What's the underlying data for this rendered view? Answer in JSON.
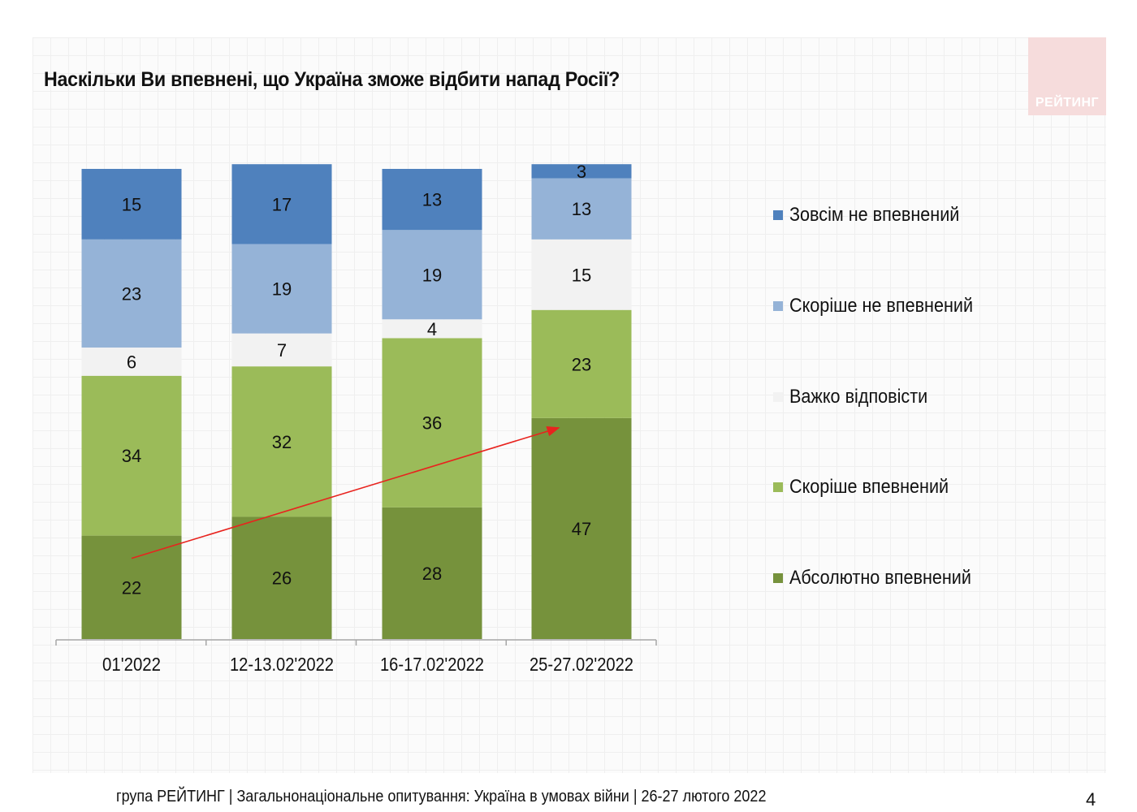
{
  "title": "Наскільки Ви впевнені, що Україна зможе відбити напад Росії?",
  "logo": "РЕЙТИНГ",
  "footer": "група РЕЙТИНГ | Загальнонаціональне опитування: Україна в умовах війни | 26-27 лютого 2022",
  "page_number": "4",
  "chart_data": {
    "type": "bar",
    "stacked": true,
    "categories": [
      "01'2022",
      "12-13.02'2022",
      "16-17.02'2022",
      "25-27.02'2022"
    ],
    "series": [
      {
        "name": "Абсолютно впевнений",
        "color": "#76923c",
        "values": [
          22,
          26,
          28,
          47
        ]
      },
      {
        "name": "Скоріше впевнений",
        "color": "#9bbb59",
        "values": [
          34,
          32,
          36,
          23
        ]
      },
      {
        "name": "Важко відповісти",
        "color": "#f2f2f2",
        "values": [
          6,
          7,
          4,
          15
        ]
      },
      {
        "name": "Скоріше не впевнений",
        "color": "#95b3d7",
        "values": [
          23,
          19,
          19,
          13
        ]
      },
      {
        "name": "Зовсім не впевнений",
        "color": "#4f81bd",
        "values": [
          15,
          17,
          13,
          3
        ]
      }
    ],
    "legend_order": [
      "Зовсім не впевнений",
      "Скоріше не впевнений",
      "Важко відповісти",
      "Скоріше впевнений",
      "Абсолютно впевнений"
    ],
    "legend_position": "right",
    "ylim": [
      0,
      100
    ],
    "annotation": {
      "type": "arrow",
      "color": "#e8231e",
      "from_category": "01'2022",
      "to_category": "25-27.02'2022",
      "meaning": "growth of Абсолютно впевнений"
    }
  }
}
